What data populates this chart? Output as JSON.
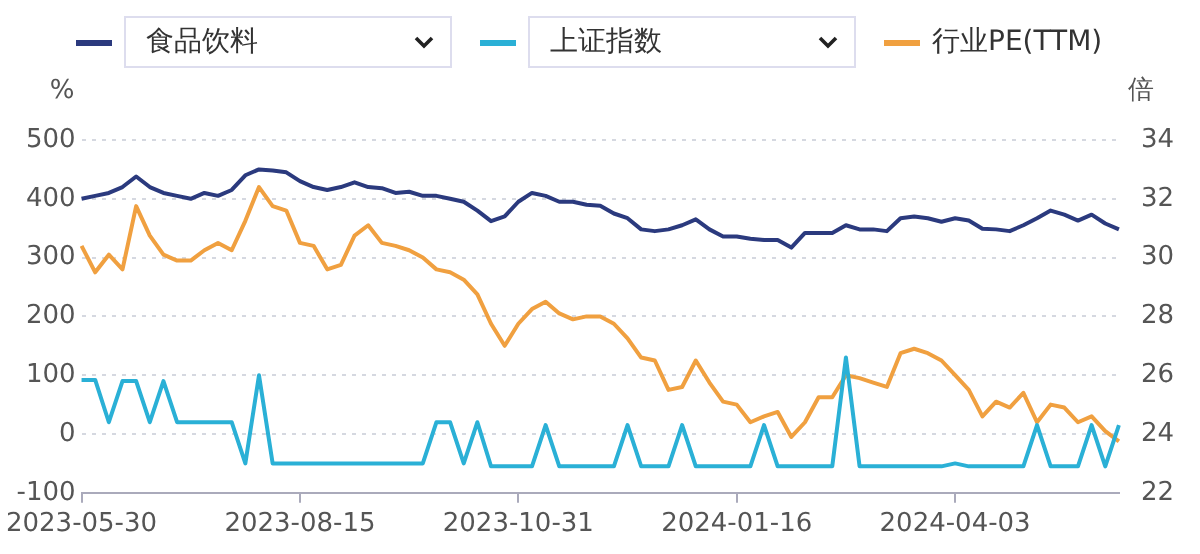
{
  "chart_data": {
    "type": "line",
    "ylabel": "%",
    "y2label": "倍",
    "categories": [
      "2023-05-30",
      null,
      null,
      null,
      null,
      null,
      null,
      null,
      null,
      null,
      null,
      null,
      null,
      null,
      null,
      null,
      "2023-08-15",
      null,
      null,
      null,
      null,
      null,
      null,
      null,
      null,
      null,
      null,
      null,
      null,
      null,
      null,
      null,
      "2023-10-31",
      null,
      null,
      null,
      null,
      null,
      null,
      null,
      null,
      null,
      null,
      null,
      null,
      null,
      null,
      null,
      "2024-01-16",
      null,
      null,
      null,
      null,
      null,
      null,
      null,
      null,
      null,
      null,
      null,
      null,
      null,
      null,
      null,
      "2024-04-03",
      null,
      null,
      null,
      null,
      null,
      null,
      null,
      null,
      null,
      null,
      null,
      null
    ],
    "series": [
      {
        "name": "食品饮料",
        "color": "#2b3a7e",
        "values": [
          400,
          405,
          410,
          420,
          438,
          420,
          410,
          405,
          400,
          410,
          405,
          415,
          440,
          450,
          448,
          445,
          430,
          420,
          415,
          420,
          428,
          420,
          418,
          410,
          412,
          405,
          405,
          400,
          395,
          380,
          362,
          370,
          395,
          410,
          405,
          395,
          395,
          390,
          388,
          375,
          367,
          348,
          345,
          348,
          355,
          365,
          348,
          336,
          336,
          332,
          330,
          330,
          317,
          342,
          342,
          342,
          355,
          348,
          348,
          345,
          367,
          370,
          367,
          361,
          367,
          363,
          349,
          348,
          345,
          355,
          367,
          380,
          373,
          363,
          373,
          358,
          348
        ]
      },
      {
        "name": "上证指数",
        "color": "#2ab0d6",
        "values": [
          92,
          92,
          20,
          90,
          90,
          20,
          90,
          20,
          20,
          20,
          20,
          20,
          -50,
          100,
          -50,
          -50,
          -50,
          -50,
          -50,
          -50,
          -50,
          -50,
          -50,
          -50,
          -50,
          -50,
          20,
          20,
          -50,
          20,
          -55,
          -55,
          -55,
          -55,
          15,
          -55,
          -55,
          -55,
          -55,
          -55,
          15,
          -55,
          -55,
          -55,
          15,
          -55,
          -55,
          -55,
          -55,
          -55,
          15,
          -55,
          -55,
          -55,
          -55,
          -55,
          130,
          -55,
          -55,
          -55,
          -55,
          -55,
          -55,
          -55,
          -50,
          -55,
          -55,
          -55,
          -55,
          -55,
          15,
          -55,
          -55,
          -55,
          15,
          -55,
          15
        ]
      },
      {
        "name": "行业PE(TTM)",
        "color": "#f0a040",
        "axis": "y2",
        "values": [
          30.4,
          29.5,
          30.1,
          29.6,
          31.75,
          30.75,
          30.1,
          29.9,
          29.9,
          30.25,
          30.5,
          30.25,
          31.25,
          32.4,
          31.75,
          31.6,
          30.5,
          30.4,
          29.6,
          29.75,
          30.75,
          31.1,
          30.5,
          30.4,
          30.25,
          30.0,
          29.6,
          29.5,
          29.25,
          28.75,
          27.75,
          27.0,
          27.75,
          28.25,
          28.5,
          28.1,
          27.9,
          28.0,
          28.0,
          27.75,
          27.25,
          26.6,
          26.5,
          25.5,
          25.6,
          26.5,
          25.75,
          25.1,
          25.0,
          24.4,
          24.6,
          24.75,
          23.9,
          24.4,
          25.25,
          25.25,
          26.0,
          25.9,
          25.75,
          25.6,
          26.75,
          26.9,
          26.75,
          26.5,
          26.0,
          25.5,
          24.6,
          25.1,
          24.9,
          25.4,
          24.4,
          25.0,
          24.9,
          24.4,
          24.6,
          24.1,
          23.75
        ]
      }
    ],
    "ylim": [
      -100,
      500
    ],
    "yticks": [
      -100,
      0,
      100,
      200,
      300,
      400,
      500
    ],
    "y2lim": [
      22,
      34
    ],
    "y2ticks": [
      22,
      24,
      26,
      28,
      30,
      32,
      34
    ],
    "grid": "y",
    "legend": "top",
    "marker": "none",
    "line_style": "solid"
  }
}
